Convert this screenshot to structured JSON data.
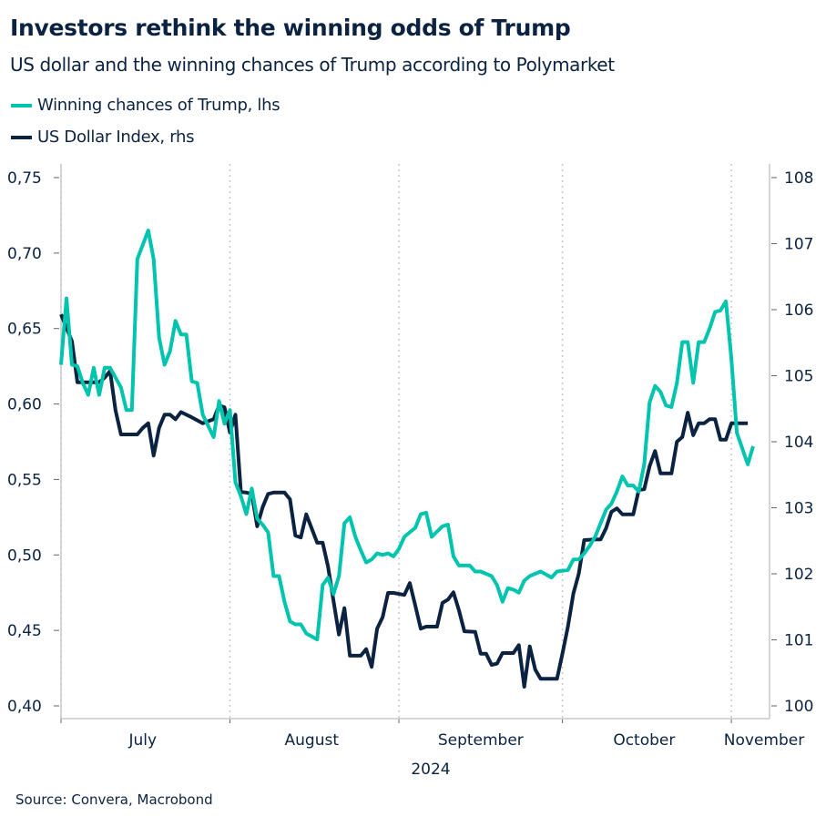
{
  "title": "Investors rethink the winning odds of Trump",
  "subtitle": "US dollar and the winning chances of Trump according to Polymarket",
  "source": "Source: Convera, Macrobond",
  "chart_data": {
    "type": "line",
    "title": "Investors rethink the winning odds of Trump",
    "subtitle": "US dollar and the winning chances of Trump according to Polymarket",
    "legend_placement": "top-left",
    "grid": "vertical dotted at month boundaries",
    "x_axis": {
      "type": "date",
      "range": [
        "2024-07-01",
        "2024-11-08"
      ],
      "tick_labels": [
        {
          "label": "July",
          "date": "2024-07-16"
        },
        {
          "label": "August",
          "date": "2024-08-16"
        },
        {
          "label": "September",
          "date": "2024-09-16"
        },
        {
          "label": "October",
          "date": "2024-10-16"
        },
        {
          "label": "November",
          "date": "2024-11-07"
        }
      ],
      "gridlines": [
        "2024-07-01",
        "2024-08-01",
        "2024-09-01",
        "2024-10-01",
        "2024-11-01"
      ],
      "year_label": "2024"
    },
    "y_left": {
      "range": [
        0.4,
        0.75
      ],
      "ticks": [
        "0,40",
        "0,45",
        "0,50",
        "0,55",
        "0,60",
        "0,65",
        "0,70",
        "0,75"
      ],
      "tick_values": [
        0.4,
        0.45,
        0.5,
        0.55,
        0.6,
        0.65,
        0.7,
        0.75
      ]
    },
    "y_right": {
      "range": [
        100,
        108
      ],
      "ticks": [
        "100",
        "101",
        "102",
        "103",
        "104",
        "105",
        "106",
        "107",
        "108"
      ],
      "tick_values": [
        100,
        101,
        102,
        103,
        104,
        105,
        106,
        107,
        108
      ]
    },
    "series": [
      {
        "name": "Winning chances of Trump, lhs",
        "axis": "left",
        "color": "#00C4AE",
        "points": [
          [
            "2024-07-01",
            0.626
          ],
          [
            "2024-07-02",
            0.67
          ],
          [
            "2024-07-03",
            0.626
          ],
          [
            "2024-07-04",
            0.625
          ],
          [
            "2024-07-05",
            0.614
          ],
          [
            "2024-07-06",
            0.606
          ],
          [
            "2024-07-07",
            0.624
          ],
          [
            "2024-07-08",
            0.606
          ],
          [
            "2024-07-09",
            0.624
          ],
          [
            "2024-07-10",
            0.624
          ],
          [
            "2024-07-12",
            0.611
          ],
          [
            "2024-07-13",
            0.596
          ],
          [
            "2024-07-14",
            0.596
          ],
          [
            "2024-07-15",
            0.696
          ],
          [
            "2024-07-17",
            0.715
          ],
          [
            "2024-07-18",
            0.696
          ],
          [
            "2024-07-19",
            0.644
          ],
          [
            "2024-07-20",
            0.626
          ],
          [
            "2024-07-21",
            0.635
          ],
          [
            "2024-07-22",
            0.655
          ],
          [
            "2024-07-23",
            0.646
          ],
          [
            "2024-07-24",
            0.646
          ],
          [
            "2024-07-25",
            0.615
          ],
          [
            "2024-07-26",
            0.614
          ],
          [
            "2024-07-27",
            0.593
          ],
          [
            "2024-07-29",
            0.578
          ],
          [
            "2024-07-30",
            0.602
          ],
          [
            "2024-07-31",
            0.587
          ],
          [
            "2024-08-01",
            0.596
          ],
          [
            "2024-08-02",
            0.548
          ],
          [
            "2024-08-03",
            0.539
          ],
          [
            "2024-08-04",
            0.527
          ],
          [
            "2024-08-05",
            0.544
          ],
          [
            "2024-08-06",
            0.524
          ],
          [
            "2024-08-07",
            0.52
          ],
          [
            "2024-08-08",
            0.515
          ],
          [
            "2024-08-09",
            0.486
          ],
          [
            "2024-08-10",
            0.486
          ],
          [
            "2024-08-11",
            0.469
          ],
          [
            "2024-08-12",
            0.456
          ],
          [
            "2024-08-13",
            0.454
          ],
          [
            "2024-08-14",
            0.454
          ],
          [
            "2024-08-15",
            0.448
          ],
          [
            "2024-08-17",
            0.444
          ],
          [
            "2024-08-18",
            0.48
          ],
          [
            "2024-08-19",
            0.485
          ],
          [
            "2024-08-20",
            0.474
          ],
          [
            "2024-08-21",
            0.486
          ],
          [
            "2024-08-22",
            0.521
          ],
          [
            "2024-08-23",
            0.525
          ],
          [
            "2024-08-24",
            0.512
          ],
          [
            "2024-08-25",
            0.503
          ],
          [
            "2024-08-26",
            0.495
          ],
          [
            "2024-08-27",
            0.497
          ],
          [
            "2024-08-28",
            0.501
          ],
          [
            "2024-08-29",
            0.5
          ],
          [
            "2024-08-30",
            0.501
          ],
          [
            "2024-08-31",
            0.499
          ],
          [
            "2024-09-01",
            0.504
          ],
          [
            "2024-09-02",
            0.512
          ],
          [
            "2024-09-03",
            0.515
          ],
          [
            "2024-09-04",
            0.518
          ],
          [
            "2024-09-05",
            0.527
          ],
          [
            "2024-09-06",
            0.528
          ],
          [
            "2024-09-07",
            0.512
          ],
          [
            "2024-09-09",
            0.519
          ],
          [
            "2024-09-10",
            0.52
          ],
          [
            "2024-09-11",
            0.499
          ],
          [
            "2024-09-12",
            0.493
          ],
          [
            "2024-09-14",
            0.493
          ],
          [
            "2024-09-15",
            0.489
          ],
          [
            "2024-09-16",
            0.489
          ],
          [
            "2024-09-18",
            0.486
          ],
          [
            "2024-09-19",
            0.48
          ],
          [
            "2024-09-20",
            0.469
          ],
          [
            "2024-09-21",
            0.478
          ],
          [
            "2024-09-22",
            0.477
          ],
          [
            "2024-09-23",
            0.475
          ],
          [
            "2024-09-24",
            0.483
          ],
          [
            "2024-09-25",
            0.486
          ],
          [
            "2024-09-27",
            0.489
          ],
          [
            "2024-09-28",
            0.487
          ],
          [
            "2024-09-29",
            0.485
          ],
          [
            "2024-09-30",
            0.489
          ],
          [
            "2024-10-02",
            0.49
          ],
          [
            "2024-10-03",
            0.497
          ],
          [
            "2024-10-04",
            0.497
          ],
          [
            "2024-10-05",
            0.501
          ],
          [
            "2024-10-06",
            0.506
          ],
          [
            "2024-10-07",
            0.512
          ],
          [
            "2024-10-09",
            0.53
          ],
          [
            "2024-10-10",
            0.534
          ],
          [
            "2024-10-11",
            0.542
          ],
          [
            "2024-10-12",
            0.552
          ],
          [
            "2024-10-13",
            0.546
          ],
          [
            "2024-10-14",
            0.546
          ],
          [
            "2024-10-15",
            0.542
          ],
          [
            "2024-10-16",
            0.56
          ],
          [
            "2024-10-17",
            0.601
          ],
          [
            "2024-10-18",
            0.612
          ],
          [
            "2024-10-19",
            0.608
          ],
          [
            "2024-10-20",
            0.599
          ],
          [
            "2024-10-21",
            0.598
          ],
          [
            "2024-10-22",
            0.614
          ],
          [
            "2024-10-23",
            0.641
          ],
          [
            "2024-10-24",
            0.641
          ],
          [
            "2024-10-25",
            0.614
          ],
          [
            "2024-10-26",
            0.641
          ],
          [
            "2024-10-27",
            0.641
          ],
          [
            "2024-10-28",
            0.65
          ],
          [
            "2024-10-29",
            0.661
          ],
          [
            "2024-10-30",
            0.662
          ],
          [
            "2024-10-31",
            0.668
          ],
          [
            "2024-11-01",
            0.63
          ],
          [
            "2024-11-02",
            0.581
          ],
          [
            "2024-11-04",
            0.56
          ],
          [
            "2024-11-05",
            0.572
          ]
        ]
      },
      {
        "name": "US Dollar Index, rhs",
        "axis": "right",
        "color": "#0B2341",
        "points": [
          [
            "2024-07-01",
            105.93
          ],
          [
            "2024-07-03",
            105.52
          ],
          [
            "2024-07-04",
            104.9
          ],
          [
            "2024-07-06",
            104.9
          ],
          [
            "2024-07-07",
            104.9
          ],
          [
            "2024-07-08",
            104.9
          ],
          [
            "2024-07-09",
            104.97
          ],
          [
            "2024-07-10",
            105.07
          ],
          [
            "2024-07-11",
            104.48
          ],
          [
            "2024-07-12",
            104.11
          ],
          [
            "2024-07-15",
            104.11
          ],
          [
            "2024-07-16",
            104.21
          ],
          [
            "2024-07-17",
            104.28
          ],
          [
            "2024-07-18",
            103.79
          ],
          [
            "2024-07-19",
            104.21
          ],
          [
            "2024-07-20",
            104.41
          ],
          [
            "2024-07-21",
            104.41
          ],
          [
            "2024-07-22",
            104.34
          ],
          [
            "2024-07-23",
            104.45
          ],
          [
            "2024-07-25",
            104.37
          ],
          [
            "2024-07-27",
            104.28
          ],
          [
            "2024-07-29",
            104.34
          ],
          [
            "2024-07-30",
            104.55
          ],
          [
            "2024-07-31",
            104.52
          ],
          [
            "2024-08-01",
            104.14
          ],
          [
            "2024-08-02",
            104.41
          ],
          [
            "2024-08-03",
            103.24
          ],
          [
            "2024-08-04",
            103.23
          ],
          [
            "2024-08-05",
            103.21
          ],
          [
            "2024-08-06",
            102.72
          ],
          [
            "2024-08-07",
            103.01
          ],
          [
            "2024-08-08",
            103.21
          ],
          [
            "2024-08-09",
            103.23
          ],
          [
            "2024-08-11",
            103.23
          ],
          [
            "2024-08-12",
            103.13
          ],
          [
            "2024-08-13",
            102.58
          ],
          [
            "2024-08-14",
            102.55
          ],
          [
            "2024-08-15",
            102.9
          ],
          [
            "2024-08-17",
            102.47
          ],
          [
            "2024-08-18",
            102.47
          ],
          [
            "2024-08-19",
            102.11
          ],
          [
            "2024-08-20",
            101.59
          ],
          [
            "2024-08-21",
            101.08
          ],
          [
            "2024-08-22",
            101.48
          ],
          [
            "2024-08-23",
            100.76
          ],
          [
            "2024-08-25",
            100.76
          ],
          [
            "2024-08-26",
            100.86
          ],
          [
            "2024-08-27",
            100.59
          ],
          [
            "2024-08-28",
            101.17
          ],
          [
            "2024-08-29",
            101.34
          ],
          [
            "2024-08-30",
            101.71
          ],
          [
            "2024-08-31",
            101.71
          ],
          [
            "2024-09-02",
            101.68
          ],
          [
            "2024-09-03",
            101.86
          ],
          [
            "2024-09-04",
            101.52
          ],
          [
            "2024-09-05",
            101.17
          ],
          [
            "2024-09-06",
            101.2
          ],
          [
            "2024-09-08",
            101.2
          ],
          [
            "2024-09-09",
            101.56
          ],
          [
            "2024-09-10",
            101.61
          ],
          [
            "2024-09-11",
            101.72
          ],
          [
            "2024-09-12",
            101.45
          ],
          [
            "2024-09-13",
            101.13
          ],
          [
            "2024-09-15",
            101.12
          ],
          [
            "2024-09-16",
            100.79
          ],
          [
            "2024-09-17",
            100.79
          ],
          [
            "2024-09-18",
            100.62
          ],
          [
            "2024-09-19",
            100.64
          ],
          [
            "2024-09-20",
            100.8
          ],
          [
            "2024-09-22",
            100.8
          ],
          [
            "2024-09-23",
            100.92
          ],
          [
            "2024-09-24",
            100.29
          ],
          [
            "2024-09-25",
            100.9
          ],
          [
            "2024-09-26",
            100.55
          ],
          [
            "2024-09-27",
            100.41
          ],
          [
            "2024-09-30",
            100.41
          ],
          [
            "2024-10-01",
            100.79
          ],
          [
            "2024-10-02",
            101.2
          ],
          [
            "2024-10-03",
            101.7
          ],
          [
            "2024-10-04",
            102.0
          ],
          [
            "2024-10-05",
            102.51
          ],
          [
            "2024-10-07",
            102.52
          ],
          [
            "2024-10-08",
            102.52
          ],
          [
            "2024-10-09",
            102.69
          ],
          [
            "2024-10-10",
            102.94
          ],
          [
            "2024-10-11",
            102.99
          ],
          [
            "2024-10-12",
            102.9
          ],
          [
            "2024-10-14",
            102.9
          ],
          [
            "2024-10-15",
            103.27
          ],
          [
            "2024-10-16",
            103.28
          ],
          [
            "2024-10-17",
            103.63
          ],
          [
            "2024-10-18",
            103.86
          ],
          [
            "2024-10-19",
            103.52
          ],
          [
            "2024-10-21",
            103.52
          ],
          [
            "2024-10-22",
            104.0
          ],
          [
            "2024-10-23",
            104.07
          ],
          [
            "2024-10-24",
            104.44
          ],
          [
            "2024-10-25",
            104.1
          ],
          [
            "2024-10-26",
            104.28
          ],
          [
            "2024-10-27",
            104.28
          ],
          [
            "2024-10-28",
            104.34
          ],
          [
            "2024-10-29",
            104.34
          ],
          [
            "2024-10-30",
            104.03
          ],
          [
            "2024-10-31",
            104.03
          ],
          [
            "2024-11-01",
            104.28
          ],
          [
            "2024-11-04",
            104.28
          ]
        ]
      }
    ]
  }
}
